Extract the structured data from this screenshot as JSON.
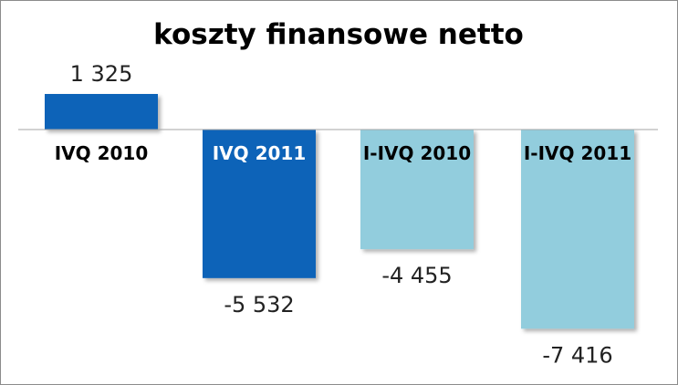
{
  "chart_data": {
    "type": "bar",
    "title": "koszty finansowe netto",
    "categories": [
      "IVQ 2010",
      "IVQ 2011",
      "I-IVQ 2010",
      "I-IVQ 2011"
    ],
    "values": [
      1325,
      -5532,
      -4455,
      -7416
    ],
    "value_labels": [
      "1 325",
      "-5 532",
      "-4 455",
      "-7 416"
    ],
    "bar_colors": [
      "#0b64b8",
      "#0b64b8",
      "#92cddd",
      "#92cddd"
    ],
    "label_colors": [
      "#000000",
      "#ffffff",
      "#000000",
      "#000000"
    ],
    "xlabel": "",
    "ylabel": "",
    "ylim": [
      -9000,
      2500
    ],
    "grid": false,
    "legend": "none"
  }
}
